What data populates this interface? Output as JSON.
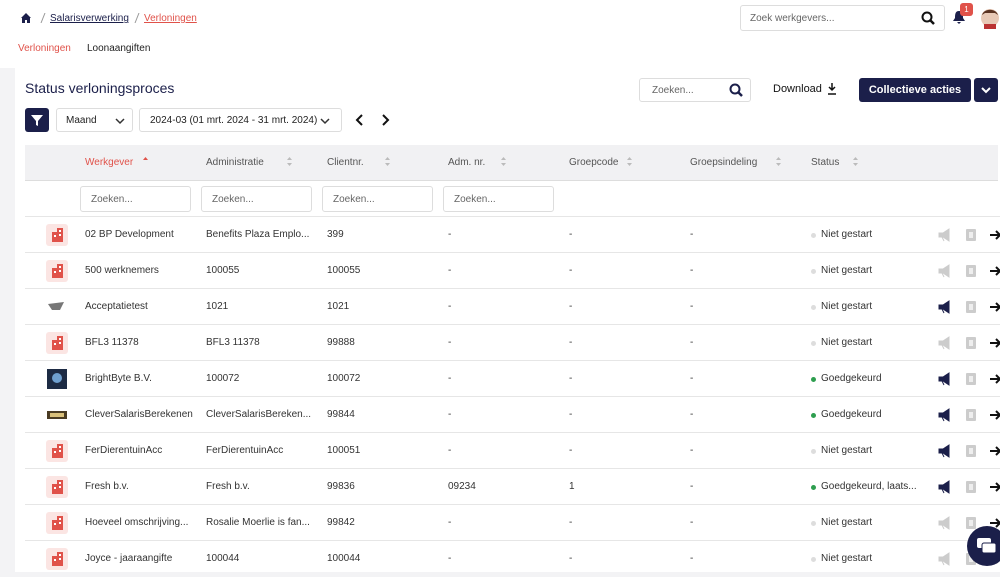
{
  "header": {
    "breadcrumb": [
      "Salarisverwerking",
      "Verloningen"
    ],
    "search_placeholder": "Zoek werkgevers...",
    "notification_count": "1"
  },
  "tabs": [
    "Verloningen",
    "Loonaangiften"
  ],
  "card": {
    "title": "Status verloningsproces",
    "search_placeholder": "Zoeken...",
    "download": "Download",
    "bulk_actions": "Collectieve acties",
    "period_type": "Maand",
    "period": "2024-03 (01 mrt. 2024 - 31 mrt. 2024)"
  },
  "table": {
    "columns": [
      "Werkgever",
      "Administratie",
      "Clientnr.",
      "Adm. nr.",
      "Groepcode",
      "Groepsindeling",
      "Status"
    ],
    "filter_placeholders": [
      "Zoeken...",
      "Zoeken...",
      "Zoeken...",
      "Zoeken..."
    ],
    "rows": [
      {
        "cells": [
          "02 BP Development",
          "Benefits Plaza Emplo...",
          "399",
          "-",
          "-",
          "-",
          "Niet gestart"
        ],
        "dot": "#dddddd",
        "megaphone": "#cccccc"
      },
      {
        "cells": [
          "500 werknemers",
          "100055",
          "100055",
          "-",
          "-",
          "-",
          "Niet gestart"
        ],
        "dot": "#dddddd",
        "megaphone": "#cccccc"
      },
      {
        "cells": [
          "Acceptatietest",
          "1021",
          "1021",
          "-",
          "-",
          "-",
          "Niet gestart"
        ],
        "dot": "#dddddd",
        "megaphone": "#1b1f4a"
      },
      {
        "cells": [
          "BFL3 11378",
          "BFL3 11378",
          "99888",
          "-",
          "-",
          "-",
          "Niet gestart"
        ],
        "dot": "#dddddd",
        "megaphone": "#cccccc"
      },
      {
        "cells": [
          "BrightByte B.V.",
          "100072",
          "100072",
          "-",
          "-",
          "-",
          "Goedgekeurd"
        ],
        "dot": "#2e9e4f",
        "megaphone": "#1b1f4a"
      },
      {
        "cells": [
          "CleverSalarisBerekenen",
          "CleverSalarisBereken...",
          "99844",
          "-",
          "-",
          "-",
          "Goedgekeurd"
        ],
        "dot": "#2e9e4f",
        "megaphone": "#1b1f4a"
      },
      {
        "cells": [
          "FerDierentuinAcc",
          "FerDierentuinAcc",
          "100051",
          "-",
          "-",
          "-",
          "Niet gestart"
        ],
        "dot": "#dddddd",
        "megaphone": "#1b1f4a"
      },
      {
        "cells": [
          "Fresh b.v.",
          "Fresh b.v.",
          "99836",
          "09234",
          "1",
          "-",
          "Goedgekeurd, laats..."
        ],
        "dot": "#2e9e4f",
        "megaphone": "#1b1f4a"
      },
      {
        "cells": [
          "Hoeveel omschrijving...",
          "Rosalie Moerlie is fan...",
          "99842",
          "-",
          "-",
          "-",
          "Niet gestart"
        ],
        "dot": "#dddddd",
        "megaphone": "#cccccc"
      },
      {
        "cells": [
          "Joyce - jaaraangifte",
          "100044",
          "100044",
          "-",
          "-",
          "-",
          "Niet gestart"
        ],
        "dot": "#dddddd",
        "megaphone": "#cccccc"
      }
    ]
  }
}
